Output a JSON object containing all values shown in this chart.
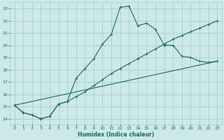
{
  "xlabel": "Humidex (Indice chaleur)",
  "xlim": [
    -0.5,
    23.5
  ],
  "ylim": [
    13.5,
    23.5
  ],
  "xticks": [
    0,
    1,
    2,
    3,
    4,
    5,
    6,
    7,
    8,
    9,
    10,
    11,
    12,
    13,
    14,
    15,
    16,
    17,
    18,
    19,
    20,
    21,
    22,
    23
  ],
  "yticks": [
    14,
    15,
    16,
    17,
    18,
    19,
    20,
    21,
    22,
    23
  ],
  "background_color": "#cce8e8",
  "grid_color": "#aacccc",
  "line_color": "#1a6b5a",
  "line1_x": [
    0,
    1,
    2,
    3,
    4,
    5,
    6,
    7,
    8,
    9,
    10,
    11,
    12,
    13,
    14,
    15,
    16,
    17,
    18,
    19,
    20,
    21,
    22,
    23
  ],
  "line1_y": [
    15.1,
    14.5,
    14.3,
    14.0,
    14.2,
    15.2,
    15.4,
    17.3,
    18.1,
    18.9,
    20.1,
    20.9,
    23.1,
    23.2,
    21.6,
    21.8,
    21.3,
    20.0,
    20.0,
    19.1,
    19.0,
    18.7,
    18.6,
    18.7
  ],
  "line2_x": [
    0,
    1,
    2,
    3,
    4,
    5,
    6,
    7,
    8,
    9,
    10,
    11,
    12,
    13,
    14,
    15,
    16,
    17,
    18,
    19,
    20,
    21,
    22,
    23
  ],
  "line2_y": [
    15.1,
    14.5,
    14.3,
    14.0,
    14.2,
    15.2,
    15.4,
    15.8,
    16.2,
    16.7,
    17.2,
    17.7,
    18.1,
    18.5,
    18.9,
    19.3,
    19.7,
    20.1,
    20.5,
    20.8,
    21.1,
    21.4,
    21.7,
    22.0
  ],
  "line3_x": [
    0,
    23
  ],
  "line3_y": [
    15.1,
    18.7
  ],
  "marker_size": 2.0
}
